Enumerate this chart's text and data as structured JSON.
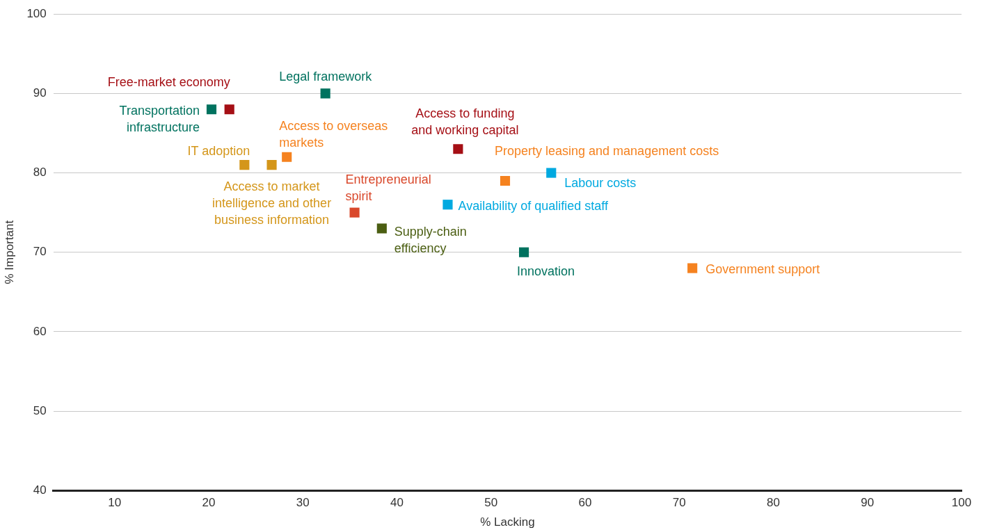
{
  "chart_data": {
    "type": "scatter",
    "xlabel": "% Lacking",
    "ylabel": "% Important",
    "xlim": [
      3.5,
      100
    ],
    "xticks": [
      10,
      20,
      30,
      40,
      50,
      60,
      70,
      80,
      90,
      100
    ],
    "ylim": [
      40,
      100
    ],
    "yticks": [
      40,
      50,
      60,
      70,
      80,
      90,
      100
    ],
    "grid": "y",
    "legend": false,
    "marker": "square",
    "series": [
      {
        "name": "Transportation infrastructure",
        "color": "#00725f",
        "x": [
          20.3
        ],
        "values": [
          88
        ]
      },
      {
        "name": "Free-market economy",
        "color": "#a50f15",
        "x": [
          22.2
        ],
        "values": [
          88
        ]
      },
      {
        "name": "Legal framework",
        "color": "#00725f",
        "x": [
          32.4
        ],
        "values": [
          90
        ]
      },
      {
        "name": "IT adoption",
        "color": "#d4961a",
        "x": [
          23.8
        ],
        "values": [
          81
        ]
      },
      {
        "name": "Access to market intelligence and other business information",
        "color": "#d4961a",
        "x": [
          26.7
        ],
        "values": [
          81
        ]
      },
      {
        "name": "Access to overseas markets",
        "color": "#f5821f",
        "x": [
          28.3
        ],
        "values": [
          82
        ]
      },
      {
        "name": "Access to funding and working capital",
        "color": "#a50f15",
        "x": [
          46.5
        ],
        "values": [
          83
        ]
      },
      {
        "name": "Property leasing and management costs",
        "color": "#f5821f",
        "x": [
          51.5
        ],
        "values": [
          79
        ]
      },
      {
        "name": "Labour costs",
        "color": "#00a9e0",
        "x": [
          56.4
        ],
        "values": [
          80
        ]
      },
      {
        "name": "Availability of qualified staff",
        "color": "#00a9e0",
        "x": [
          45.4
        ],
        "values": [
          76
        ]
      },
      {
        "name": "Entrepreneurial spirit",
        "color": "#d9482b",
        "x": [
          35.5
        ],
        "values": [
          75
        ]
      },
      {
        "name": "Supply-chain efficiency",
        "color": "#4b5e12",
        "x": [
          38.4
        ],
        "values": [
          73
        ]
      },
      {
        "name": "Innovation",
        "color": "#00725f",
        "x": [
          53.5
        ],
        "values": [
          70
        ]
      },
      {
        "name": "Government support",
        "color": "#f5821f",
        "x": [
          71.4
        ],
        "values": [
          68
        ]
      }
    ]
  }
}
